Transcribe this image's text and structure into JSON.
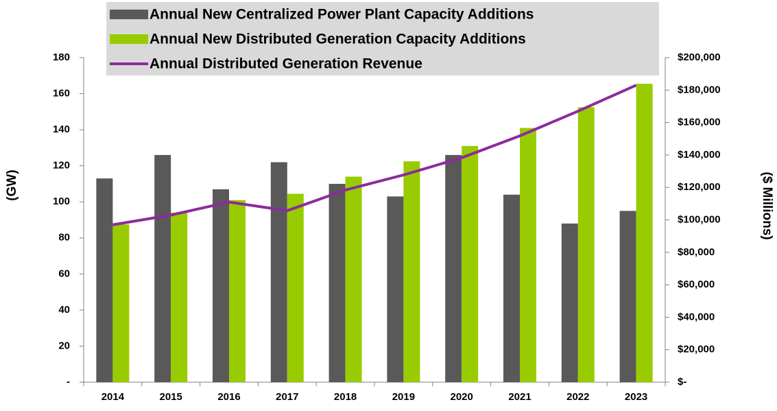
{
  "chart_data": {
    "type": "bar",
    "categories": [
      "2014",
      "2015",
      "2016",
      "2017",
      "2018",
      "2019",
      "2020",
      "2021",
      "2022",
      "2023"
    ],
    "series": [
      {
        "name": "Annual New Centralized Power Plant Capacity Additions",
        "type": "bar",
        "color": "#595959",
        "values": [
          113,
          126,
          107,
          122,
          110,
          103,
          126,
          104,
          88,
          95
        ]
      },
      {
        "name": "Annual New Distributed Generation Capacity Additions",
        "type": "bar",
        "color": "#99cc00",
        "values": [
          87.5,
          94,
          101,
          104.5,
          114,
          122.5,
          131,
          141,
          152.5,
          165.5
        ]
      },
      {
        "name": "Annual Distributed Generation Revenue",
        "type": "line",
        "axis": "y2",
        "color": "#8b2c9b",
        "values": [
          97000,
          103000,
          111000,
          105700,
          118400,
          127700,
          138300,
          151800,
          167000,
          183000
        ]
      }
    ],
    "ylabel": "(GW)",
    "y2label": "($ Millions)",
    "ylim": [
      0,
      180
    ],
    "yticks": [
      {
        "value": 0,
        "label": "-"
      },
      20,
      40,
      60,
      80,
      100,
      120,
      140,
      160,
      180
    ],
    "y2lim": [
      0,
      200000
    ],
    "y2ticks": [
      {
        "value": 0,
        "label": "$-"
      },
      {
        "value": 20000,
        "label": "$20,000"
      },
      {
        "value": 40000,
        "label": "$40,000"
      },
      {
        "value": 60000,
        "label": "$60,000"
      },
      {
        "value": 80000,
        "label": "$80,000"
      },
      {
        "value": 100000,
        "label": "$100,000"
      },
      {
        "value": 120000,
        "label": "$120,000"
      },
      {
        "value": 140000,
        "label": "$140,000"
      },
      {
        "value": 160000,
        "label": "$160,000"
      },
      {
        "value": 180000,
        "label": "$180,000"
      },
      {
        "value": 200000,
        "label": "$200,000"
      }
    ],
    "grid": false,
    "legend": "top"
  }
}
